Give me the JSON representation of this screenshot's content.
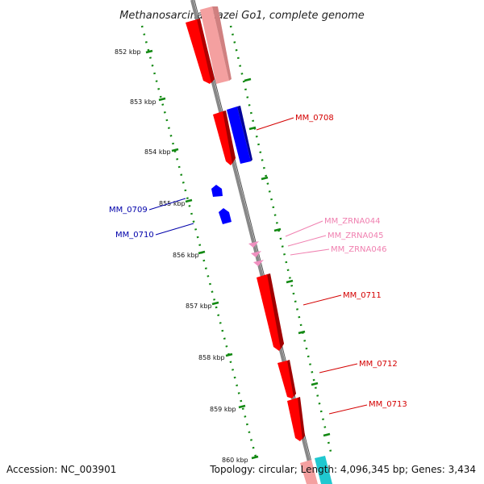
{
  "title": "Methanosarcina mazei Go1, complete genome",
  "footer": {
    "accession": "Accession: NC_003901",
    "topology": "Topology: circular; Length: 4,096,345 bp; Genes: 3,434"
  },
  "ticks": [
    "852 kbp",
    "853 kbp",
    "854 kbp",
    "855 kbp",
    "856 kbp",
    "857 kbp",
    "858 kbp",
    "859 kbp",
    "860 kbp"
  ],
  "genes": [
    {
      "label": "MM_0708",
      "color": "#d40000"
    },
    {
      "label": "MM_0709",
      "color": "#0000aa"
    },
    {
      "label": "MM_0710",
      "color": "#0000aa"
    },
    {
      "label": "MM_ZRNA044",
      "color": "#f080b0"
    },
    {
      "label": "MM_ZRNA045",
      "color": "#f080b0"
    },
    {
      "label": "MM_ZRNA046",
      "color": "#f080b0"
    },
    {
      "label": "MM_0711",
      "color": "#d40000"
    },
    {
      "label": "MM_0712",
      "color": "#d40000"
    },
    {
      "label": "MM_0713",
      "color": "#d40000"
    }
  ],
  "colors": {
    "red_feature": "#ff0000",
    "light_red_feature": "#f4a0a0",
    "blue_feature": "#0000ff",
    "pink_feature": "#f090c0",
    "cyan_feature": "#20c8d0",
    "backbone": "#888888",
    "tick_track": "#118811"
  }
}
